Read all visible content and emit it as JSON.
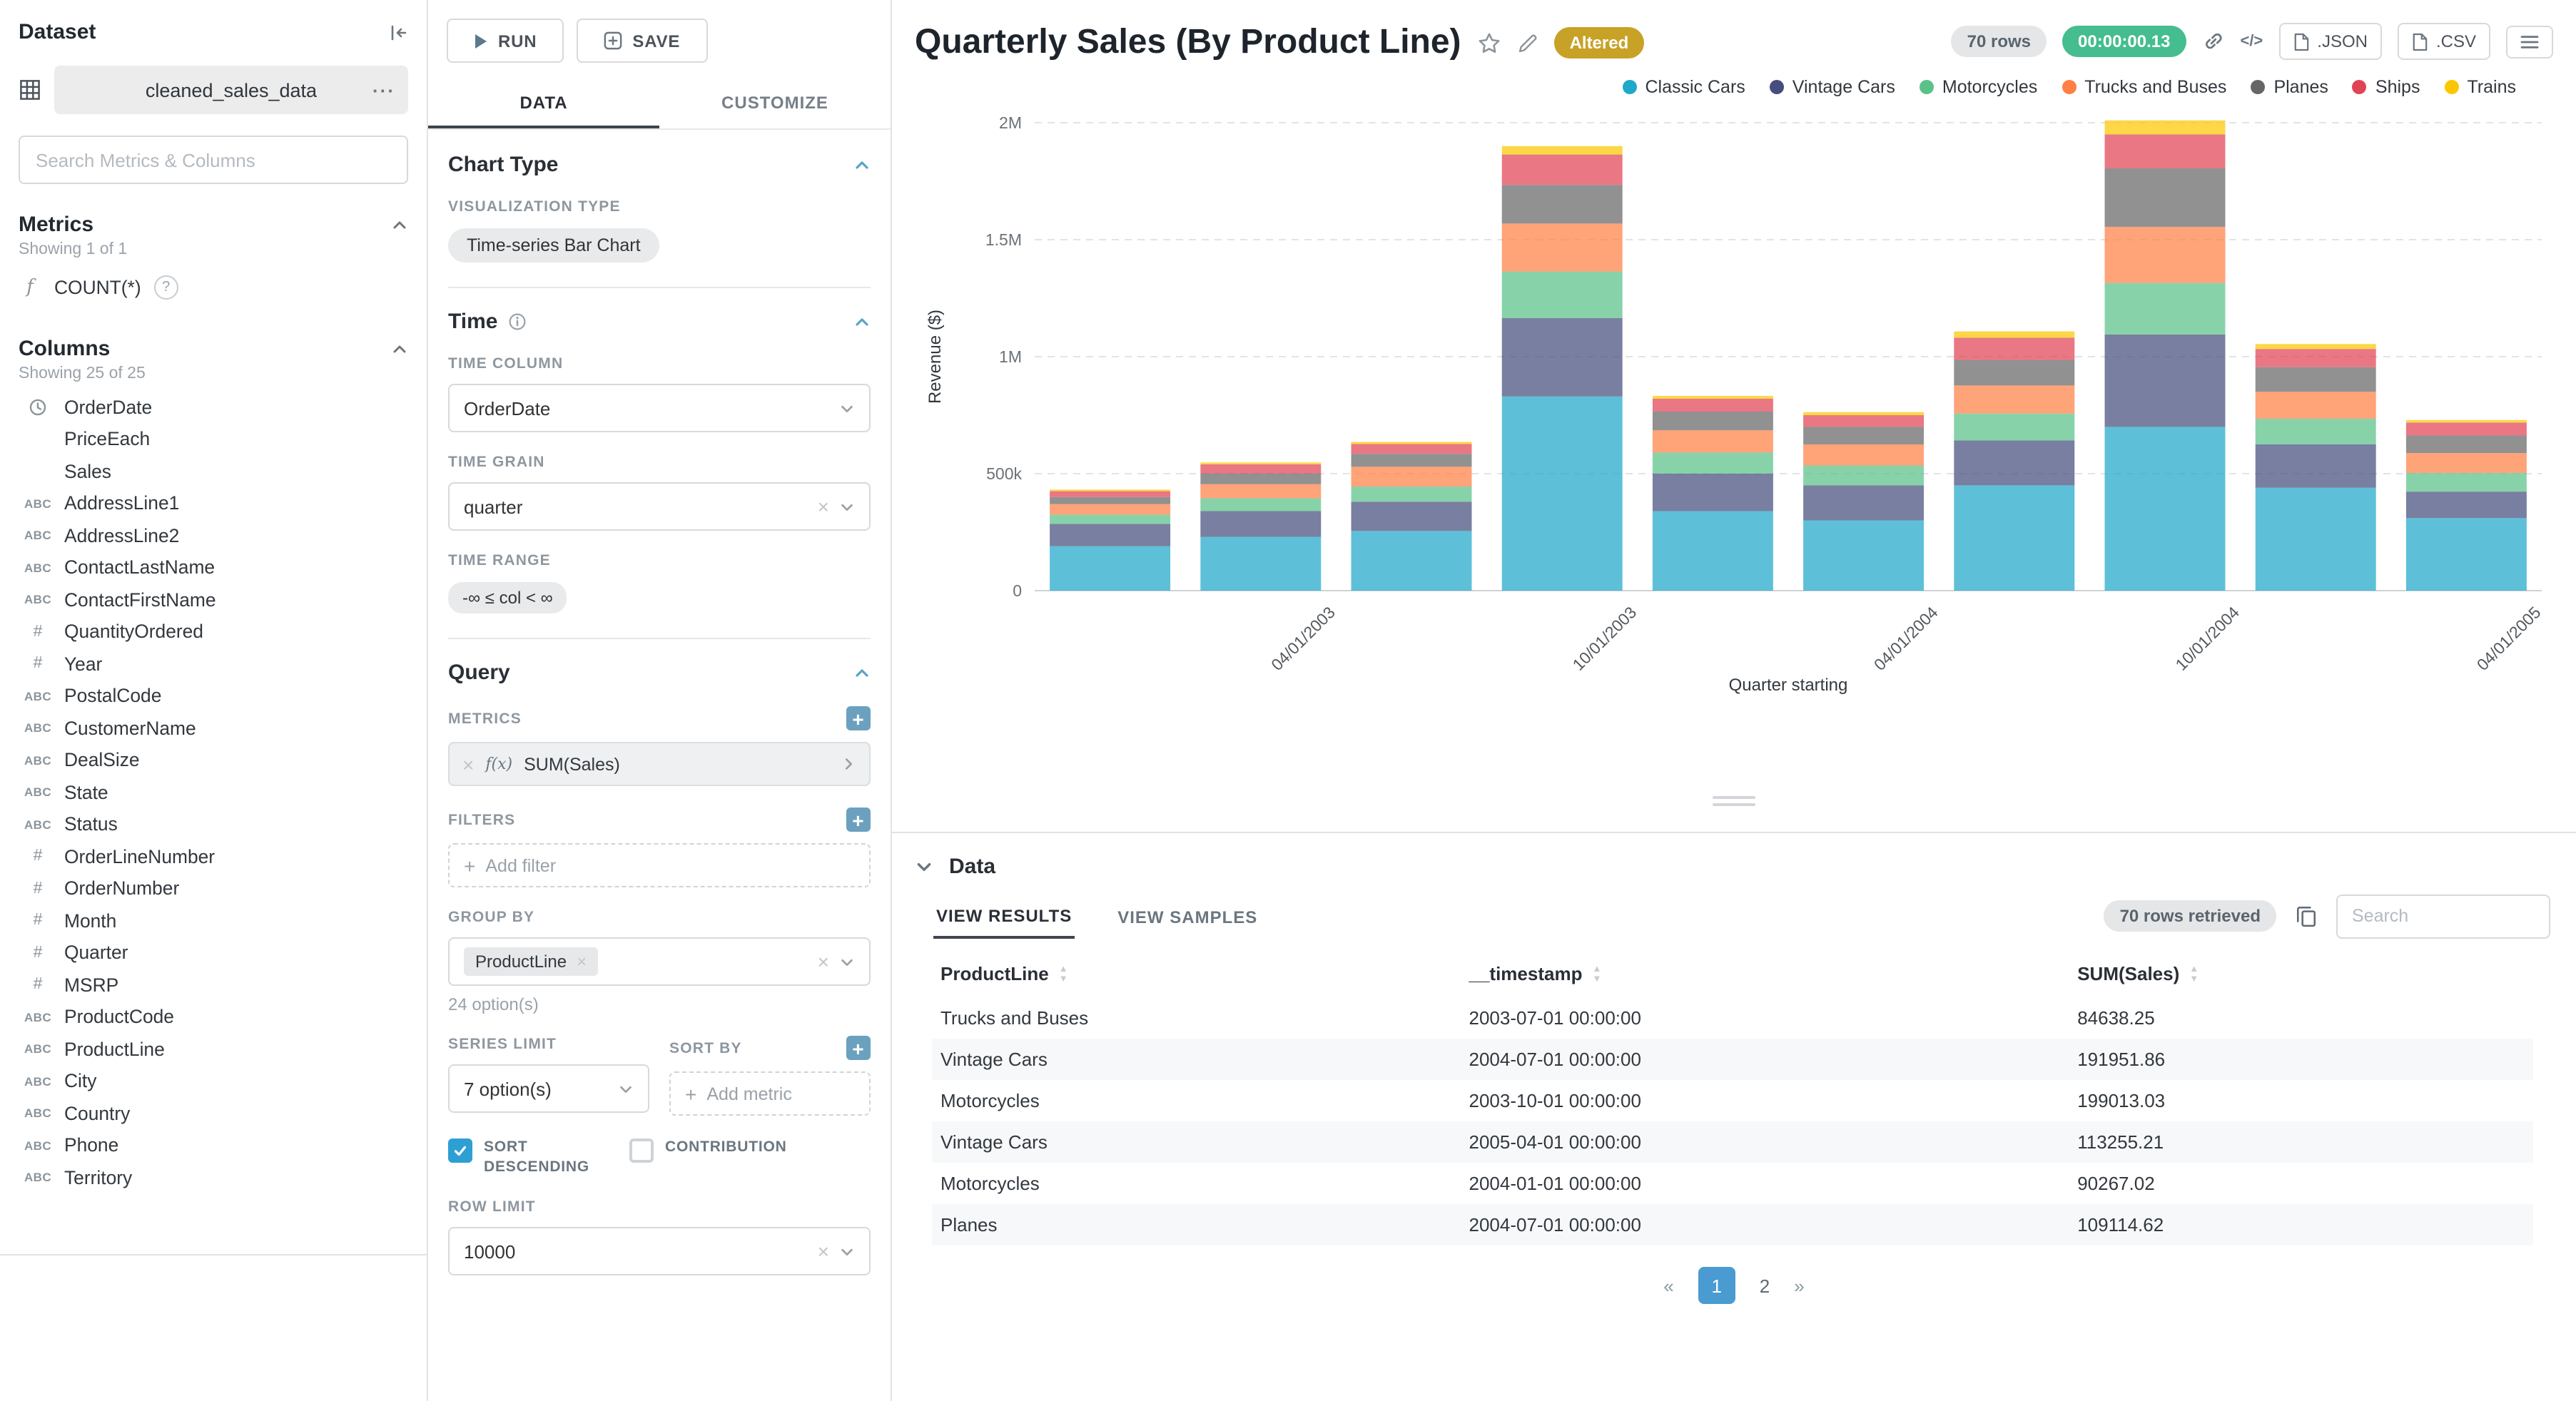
{
  "dataset_panel": {
    "title": "Dataset",
    "dataset_name": "cleaned_sales_data",
    "search_placeholder": "Search Metrics & Columns",
    "metrics": {
      "title": "Metrics",
      "showing": "Showing 1 of 1",
      "items": [
        {
          "name": "COUNT(*)"
        }
      ]
    },
    "columns": {
      "title": "Columns",
      "showing": "Showing 25 of 25",
      "items": [
        {
          "name": "OrderDate",
          "type": "time"
        },
        {
          "name": "PriceEach",
          "type": "none"
        },
        {
          "name": "Sales",
          "type": "none"
        },
        {
          "name": "AddressLine1",
          "type": "text"
        },
        {
          "name": "AddressLine2",
          "type": "text"
        },
        {
          "name": "ContactLastName",
          "type": "text"
        },
        {
          "name": "ContactFirstName",
          "type": "text"
        },
        {
          "name": "QuantityOrdered",
          "type": "number"
        },
        {
          "name": "Year",
          "type": "number"
        },
        {
          "name": "PostalCode",
          "type": "text"
        },
        {
          "name": "CustomerName",
          "type": "text"
        },
        {
          "name": "DealSize",
          "type": "text"
        },
        {
          "name": "State",
          "type": "text"
        },
        {
          "name": "Status",
          "type": "text"
        },
        {
          "name": "OrderLineNumber",
          "type": "number"
        },
        {
          "name": "OrderNumber",
          "type": "number"
        },
        {
          "name": "Month",
          "type": "number"
        },
        {
          "name": "Quarter",
          "type": "number"
        },
        {
          "name": "MSRP",
          "type": "number"
        },
        {
          "name": "ProductCode",
          "type": "text"
        },
        {
          "name": "ProductLine",
          "type": "text"
        },
        {
          "name": "City",
          "type": "text"
        },
        {
          "name": "Country",
          "type": "text"
        },
        {
          "name": "Phone",
          "type": "text"
        },
        {
          "name": "Territory",
          "type": "text"
        }
      ]
    }
  },
  "controls": {
    "run_label": "RUN",
    "save_label": "SAVE",
    "tabs": {
      "data": "DATA",
      "customize": "CUSTOMIZE"
    },
    "chart_type_section": "Chart Type",
    "visualization_type_label": "VISUALIZATION TYPE",
    "visualization_type": "Time-series Bar Chart",
    "time_section": "Time",
    "time_column_label": "TIME COLUMN",
    "time_column": "OrderDate",
    "time_grain_label": "TIME GRAIN",
    "time_grain": "quarter",
    "time_range_label": "TIME RANGE",
    "time_range": "-∞ ≤ col < ∞",
    "query_section": "Query",
    "metrics_label": "METRICS",
    "metric_fx": "f(x)",
    "metric": "SUM(Sales)",
    "filters_label": "FILTERS",
    "add_filter": "Add filter",
    "group_by_label": "GROUP BY",
    "group_by_value": "ProductLine",
    "group_by_options": "24 option(s)",
    "series_limit_label": "SERIES LIMIT",
    "series_limit": "7 option(s)",
    "sort_by_label": "SORT BY",
    "add_metric": "Add metric",
    "sort_descending_label": "SORT DESCENDING",
    "contribution_label": "CONTRIBUTION",
    "row_limit_label": "ROW LIMIT",
    "row_limit": "10000"
  },
  "header": {
    "title": "Quarterly Sales (By Product Line)",
    "altered_badge": "Altered",
    "rows_badge": "70 rows",
    "timer_badge": "00:00:00.13",
    "json_button": ".JSON",
    "csv_button": ".CSV"
  },
  "icons": {
    "run-icon": "play-triangle",
    "save-icon": "plus-square",
    "share-icon": "link-chain",
    "embed-icon": "</>",
    "menu-icon": "hamburger",
    "copy-icon": "clipboard",
    "favorite-icon": "star-outline",
    "edit-icon": "pencil"
  },
  "chart_data": {
    "type": "bar",
    "stacked": true,
    "title": "Quarterly Sales (By Product Line)",
    "xlabel": "Quarter starting",
    "ylabel": "Revenue ($)",
    "ylim": [
      0,
      2000000
    ],
    "y_ticks": [
      "0",
      "500k",
      "1M",
      "1.5M",
      "2M"
    ],
    "y_tick_values": [
      0,
      500000,
      1000000,
      1500000,
      2000000
    ],
    "grid": "dashed-horizontal",
    "legend_position": "top-right",
    "x": [
      "01/01/2003",
      "04/01/2003",
      "07/01/2003",
      "10/01/2003",
      "01/01/2004",
      "04/01/2004",
      "07/01/2004",
      "10/01/2004",
      "01/01/2005",
      "04/01/2005"
    ],
    "x_tick_labels": [
      "04/01/2003",
      "10/01/2003",
      "04/01/2004",
      "10/01/2004",
      "04/01/2005"
    ],
    "series": [
      {
        "name": "Classic Cars",
        "color": "#1FA8C9",
        "values": [
          190000,
          230000,
          255000,
          830000,
          340000,
          300000,
          450000,
          700000,
          440000,
          310000
        ]
      },
      {
        "name": "Vintage Cars",
        "color": "#454E7C",
        "values": [
          95000,
          110000,
          125000,
          335000,
          160000,
          150000,
          191951.86,
          395000,
          185000,
          113255.21
        ]
      },
      {
        "name": "Motorcycles",
        "color": "#5AC189",
        "values": [
          40000,
          55000,
          65000,
          199013.03,
          90267.02,
          85000,
          115000,
          220000,
          110000,
          80000
        ]
      },
      {
        "name": "Trucks and Buses",
        "color": "#FF7F44",
        "values": [
          45000,
          60000,
          84638.25,
          205000,
          95000,
          90000,
          120000,
          240000,
          115000,
          85000
        ]
      },
      {
        "name": "Planes",
        "color": "#666666",
        "values": [
          30000,
          45000,
          55000,
          165000,
          80000,
          75000,
          109114.62,
          250000,
          105000,
          75000
        ]
      },
      {
        "name": "Ships",
        "color": "#E04355",
        "values": [
          25000,
          40000,
          42000,
          130000,
          55000,
          50000,
          95000,
          145000,
          78000,
          55000
        ]
      },
      {
        "name": "Trains",
        "color": "#FCC700",
        "values": [
          7000,
          8000,
          9000,
          36000,
          12000,
          13000,
          27000,
          60000,
          21000,
          11000
        ]
      }
    ]
  },
  "data_panel": {
    "title": "Data",
    "tabs": {
      "results": "VIEW RESULTS",
      "samples": "VIEW SAMPLES"
    },
    "rows_retrieved": "70 rows retrieved",
    "search_placeholder": "Search",
    "table": {
      "columns": [
        "ProductLine",
        "__timestamp",
        "SUM(Sales)"
      ],
      "rows": [
        [
          "Trucks and Buses",
          "2003-07-01 00:00:00",
          "84638.25"
        ],
        [
          "Vintage Cars",
          "2004-07-01 00:00:00",
          "191951.86"
        ],
        [
          "Motorcycles",
          "2003-10-01 00:00:00",
          "199013.03"
        ],
        [
          "Vintage Cars",
          "2005-04-01 00:00:00",
          "113255.21"
        ],
        [
          "Motorcycles",
          "2004-01-01 00:00:00",
          "90267.02"
        ],
        [
          "Planes",
          "2004-07-01 00:00:00",
          "109114.62"
        ]
      ]
    },
    "pagination": [
      "«",
      "1",
      "2",
      "»"
    ],
    "active_page": "1"
  }
}
